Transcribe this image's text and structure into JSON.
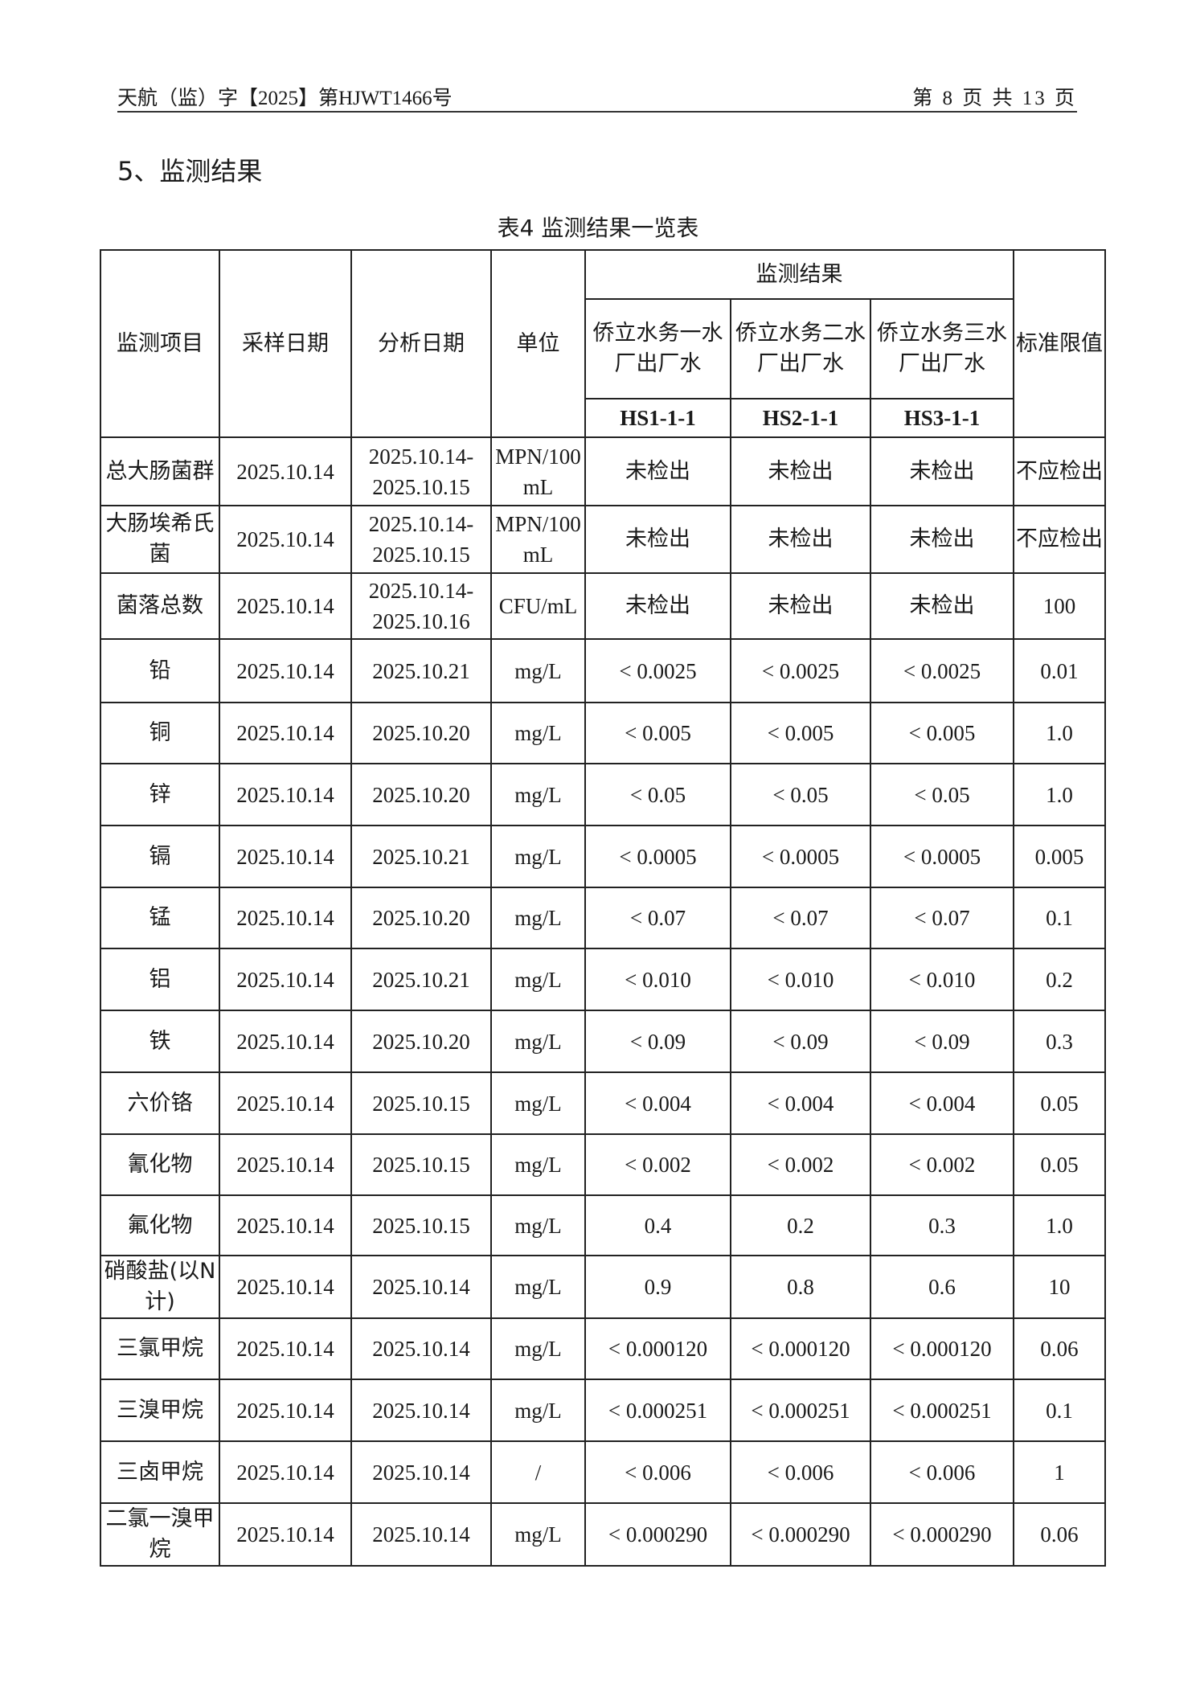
{
  "header": {
    "doc_number": "天航（监）字【2025】第HJWT1466号",
    "page_info": "第 8 页 共 13 页"
  },
  "section_title": "5、监测结果",
  "table_caption": "表4 监测结果一览表",
  "table": {
    "headers": {
      "item": "监测项目",
      "sample_date": "采样日期",
      "analysis_date": "分析日期",
      "unit": "单位",
      "results": "监测结果",
      "standard": "标准限值",
      "sites": [
        {
          "name": "侨立水务一水厂出厂水",
          "code": "HS1-1-1"
        },
        {
          "name": "侨立水务二水厂出厂水",
          "code": "HS2-1-1"
        },
        {
          "name": "侨立水务三水厂出厂水",
          "code": "HS3-1-1"
        }
      ]
    },
    "rows": [
      {
        "item": "总大肠菌群",
        "sample_date": "2025.10.14",
        "analysis_date": "2025.10.14-2025.10.15",
        "unit": "MPN/100 mL",
        "r1": "未检出",
        "r2": "未检出",
        "r3": "未检出",
        "standard": "不应检出"
      },
      {
        "item": "大肠埃希氏菌",
        "sample_date": "2025.10.14",
        "analysis_date": "2025.10.14-2025.10.15",
        "unit": "MPN/100 mL",
        "r1": "未检出",
        "r2": "未检出",
        "r3": "未检出",
        "standard": "不应检出"
      },
      {
        "item": "菌落总数",
        "sample_date": "2025.10.14",
        "analysis_date": "2025.10.14-2025.10.16",
        "unit": "CFU/mL",
        "r1": "未检出",
        "r2": "未检出",
        "r3": "未检出",
        "standard": "100"
      },
      {
        "item": "铅",
        "sample_date": "2025.10.14",
        "analysis_date": "2025.10.21",
        "unit": "mg/L",
        "r1": "< 0.0025",
        "r2": "< 0.0025",
        "r3": "< 0.0025",
        "standard": "0.01"
      },
      {
        "item": "铜",
        "sample_date": "2025.10.14",
        "analysis_date": "2025.10.20",
        "unit": "mg/L",
        "r1": "< 0.005",
        "r2": "< 0.005",
        "r3": "< 0.005",
        "standard": "1.0"
      },
      {
        "item": "锌",
        "sample_date": "2025.10.14",
        "analysis_date": "2025.10.20",
        "unit": "mg/L",
        "r1": "< 0.05",
        "r2": "< 0.05",
        "r3": "< 0.05",
        "standard": "1.0"
      },
      {
        "item": "镉",
        "sample_date": "2025.10.14",
        "analysis_date": "2025.10.21",
        "unit": "mg/L",
        "r1": "< 0.0005",
        "r2": "< 0.0005",
        "r3": "< 0.0005",
        "standard": "0.005"
      },
      {
        "item": "锰",
        "sample_date": "2025.10.14",
        "analysis_date": "2025.10.20",
        "unit": "mg/L",
        "r1": "< 0.07",
        "r2": "< 0.07",
        "r3": "< 0.07",
        "standard": "0.1"
      },
      {
        "item": "铝",
        "sample_date": "2025.10.14",
        "analysis_date": "2025.10.21",
        "unit": "mg/L",
        "r1": "< 0.010",
        "r2": "< 0.010",
        "r3": "< 0.010",
        "standard": "0.2"
      },
      {
        "item": "铁",
        "sample_date": "2025.10.14",
        "analysis_date": "2025.10.20",
        "unit": "mg/L",
        "r1": "< 0.09",
        "r2": "< 0.09",
        "r3": "< 0.09",
        "standard": "0.3"
      },
      {
        "item": "六价铬",
        "sample_date": "2025.10.14",
        "analysis_date": "2025.10.15",
        "unit": "mg/L",
        "r1": "< 0.004",
        "r2": "< 0.004",
        "r3": "< 0.004",
        "standard": "0.05"
      },
      {
        "item": "氰化物",
        "sample_date": "2025.10.14",
        "analysis_date": "2025.10.15",
        "unit": "mg/L",
        "r1": "< 0.002",
        "r2": "< 0.002",
        "r3": "< 0.002",
        "standard": "0.05"
      },
      {
        "item": "氟化物",
        "sample_date": "2025.10.14",
        "analysis_date": "2025.10.15",
        "unit": "mg/L",
        "r1": "0.4",
        "r2": "0.2",
        "r3": "0.3",
        "standard": "1.0"
      },
      {
        "item": "硝酸盐(以N计)",
        "sample_date": "2025.10.14",
        "analysis_date": "2025.10.14",
        "unit": "mg/L",
        "r1": "0.9",
        "r2": "0.8",
        "r3": "0.6",
        "standard": "10"
      },
      {
        "item": "三氯甲烷",
        "sample_date": "2025.10.14",
        "analysis_date": "2025.10.14",
        "unit": "mg/L",
        "r1": "< 0.000120",
        "r2": "< 0.000120",
        "r3": "< 0.000120",
        "standard": "0.06"
      },
      {
        "item": "三溴甲烷",
        "sample_date": "2025.10.14",
        "analysis_date": "2025.10.14",
        "unit": "mg/L",
        "r1": "< 0.000251",
        "r2": "< 0.000251",
        "r3": "< 0.000251",
        "standard": "0.1"
      },
      {
        "item": "三卤甲烷",
        "sample_date": "2025.10.14",
        "analysis_date": "2025.10.14",
        "unit": "/",
        "r1": "< 0.006",
        "r2": "< 0.006",
        "r3": "< 0.006",
        "standard": "1"
      },
      {
        "item": "二氯一溴甲烷",
        "sample_date": "2025.10.14",
        "analysis_date": "2025.10.14",
        "unit": "mg/L",
        "r1": "< 0.000290",
        "r2": "< 0.000290",
        "r3": "< 0.000290",
        "standard": "0.06"
      }
    ]
  }
}
